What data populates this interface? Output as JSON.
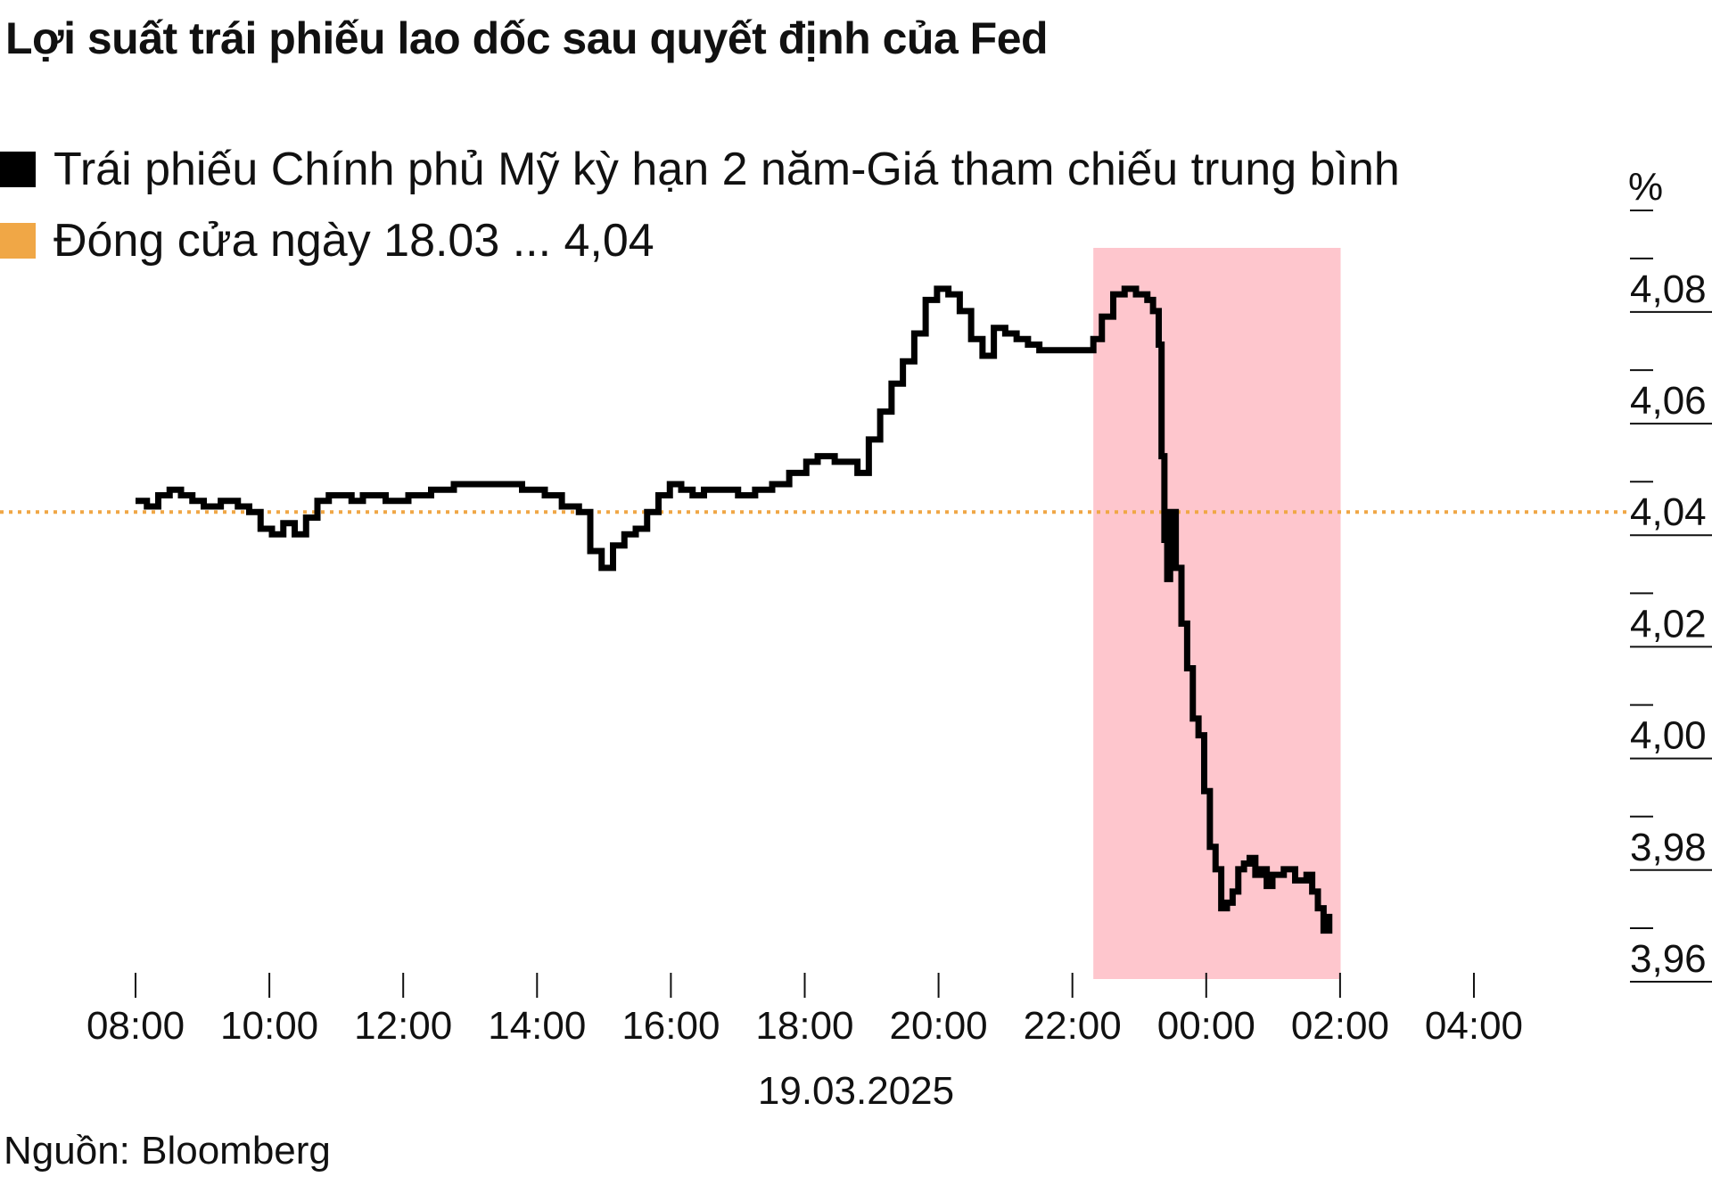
{
  "title": "Lợi suất trái phiếu lao dốc sau quyết định của Fed",
  "legend": [
    {
      "label": "Trái phiếu Chính phủ Mỹ kỳ hạn 2 năm-Giá tham chiếu trung bình",
      "color": "#000000"
    },
    {
      "label": "Đóng cửa ngày 18.03 ... 4,04",
      "color": "#F0A746"
    }
  ],
  "source": "Nguồn: Bloomberg",
  "colors": {
    "line": "#000000",
    "reference": "#F0A746",
    "highlight": "#FEC6CD"
  },
  "chart_data": {
    "type": "line",
    "title": "Lợi suất trái phiếu lao dốc sau quyết định của Fed",
    "xlabel": "19.03.2025",
    "ylabel": "%",
    "x_tick_labels": [
      "08:00",
      "10:00",
      "12:00",
      "14:00",
      "16:00",
      "18:00",
      "20:00",
      "22:00",
      "00:00",
      "02:00",
      "04:00"
    ],
    "y_tick_labels": [
      "3,96",
      "3,98",
      "4,00",
      "4,02",
      "4,04",
      "4,06",
      "4,08"
    ],
    "y_ticks": [
      3.96,
      3.98,
      4.0,
      4.02,
      4.04,
      4.06,
      4.08
    ],
    "ylim": [
      3.956,
      4.095
    ],
    "xlim_hours": [
      8,
      32
    ],
    "axis_position": "right",
    "grid": false,
    "legend_position": "top-left",
    "reference_line": {
      "label": "Đóng cửa ngày 18.03",
      "value": 4.04
    },
    "highlight_range_hours": [
      24.85,
      29.2
    ],
    "series": [
      {
        "name": "Trái phiếu Chính phủ Mỹ kỳ hạn 2 năm-Giá tham chiếu trung bình",
        "x_hours": [
          8.0,
          8.2,
          8.4,
          8.6,
          8.8,
          9.0,
          9.2,
          9.5,
          9.8,
          10.0,
          10.2,
          10.4,
          10.6,
          10.8,
          11.0,
          11.2,
          11.4,
          11.6,
          11.8,
          12.0,
          12.4,
          12.8,
          13.2,
          13.6,
          14.0,
          14.4,
          14.8,
          15.2,
          15.5,
          15.8,
          16.0,
          16.2,
          16.4,
          16.6,
          16.8,
          17.0,
          17.2,
          17.4,
          17.6,
          17.8,
          18.0,
          18.3,
          18.6,
          18.9,
          19.2,
          19.5,
          19.8,
          20.0,
          20.3,
          20.6,
          20.7,
          20.9,
          21.1,
          21.3,
          21.5,
          21.7,
          21.9,
          22.1,
          22.3,
          22.5,
          22.7,
          22.9,
          23.1,
          23.3,
          23.5,
          23.7,
          23.9,
          24.1,
          24.4,
          24.7,
          24.85,
          25.0,
          25.2,
          25.4,
          25.6,
          25.8,
          25.9,
          26.0,
          26.05,
          26.1,
          26.15,
          26.2,
          26.3,
          26.4,
          26.5,
          26.6,
          26.7,
          26.8,
          26.9,
          27.0,
          27.1,
          27.2,
          27.3,
          27.4,
          27.5,
          27.6,
          27.7,
          27.8,
          27.9,
          28.0,
          28.2,
          28.4,
          28.6,
          28.7,
          28.8,
          28.9,
          29.0
        ],
        "values": [
          4.042,
          4.041,
          4.043,
          4.044,
          4.043,
          4.042,
          4.041,
          4.042,
          4.041,
          4.04,
          4.037,
          4.036,
          4.038,
          4.036,
          4.039,
          4.042,
          4.043,
          4.043,
          4.042,
          4.043,
          4.042,
          4.043,
          4.044,
          4.045,
          4.045,
          4.045,
          4.044,
          4.043,
          4.041,
          4.04,
          4.033,
          4.03,
          4.034,
          4.036,
          4.037,
          4.04,
          4.043,
          4.045,
          4.044,
          4.043,
          4.044,
          4.044,
          4.043,
          4.044,
          4.045,
          4.047,
          4.049,
          4.05,
          4.049,
          4.049,
          4.047,
          4.053,
          4.058,
          4.063,
          4.067,
          4.072,
          4.078,
          4.08,
          4.079,
          4.076,
          4.071,
          4.068,
          4.073,
          4.072,
          4.071,
          4.07,
          4.069,
          4.069,
          4.069,
          4.069,
          4.071,
          4.075,
          4.079,
          4.08,
          4.079,
          4.078,
          4.076,
          4.07,
          4.05,
          4.035,
          4.028,
          4.04,
          4.03,
          4.02,
          4.012,
          4.003,
          4.0,
          3.99,
          3.98,
          3.976,
          3.969,
          3.97,
          3.972,
          3.976,
          3.977,
          3.978,
          3.975,
          3.976,
          3.973,
          3.975,
          3.976,
          3.974,
          3.975,
          3.972,
          3.969,
          3.965,
          3.968
        ]
      }
    ]
  }
}
